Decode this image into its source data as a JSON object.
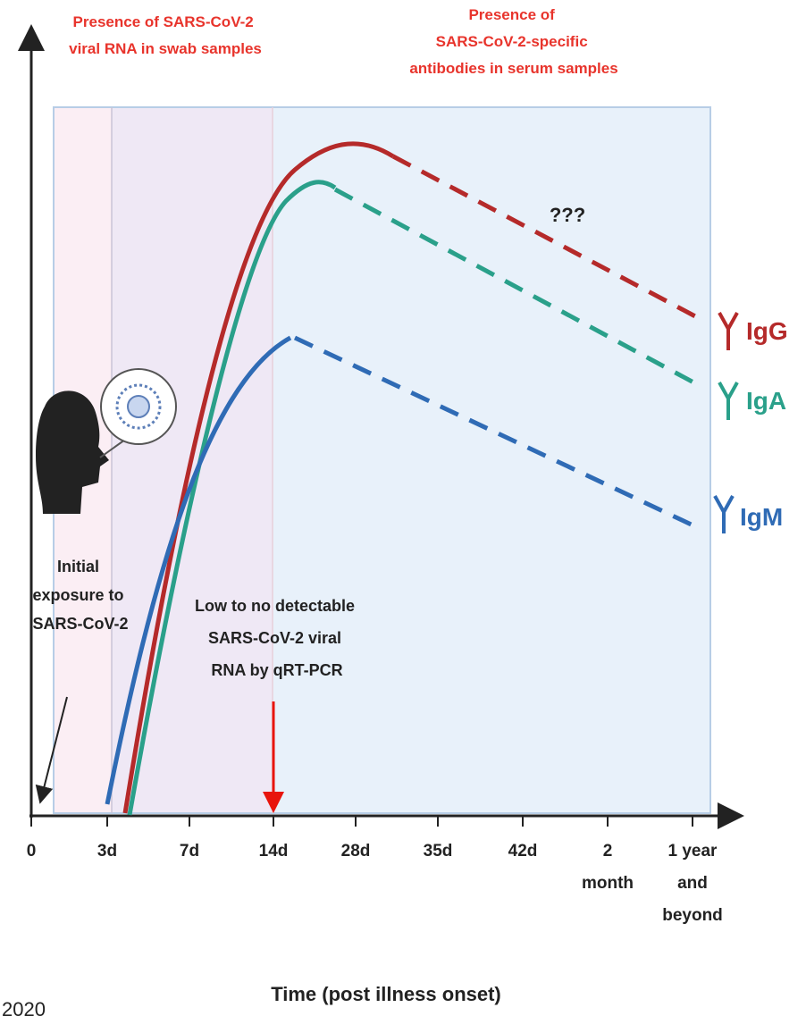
{
  "header": {
    "swab_label": [
      "Presence of SARS-CoV-2",
      "viral RNA in swab samples"
    ],
    "serum_label": [
      "Presence of",
      "SARS-CoV-2-specific",
      "antibodies in serum samples"
    ]
  },
  "annotations": {
    "unknown": "???",
    "exposure": [
      "Initial",
      "exposure to",
      "SARS-CoV-2"
    ],
    "detection": [
      "Low to no detectable",
      "SARS-CoV-2 viral",
      "RNA by qRT-PCR"
    ]
  },
  "legend": [
    "IgG",
    "IgA",
    "IgM"
  ],
  "x_axis": {
    "ticks": [
      [
        "0"
      ],
      [
        "3d"
      ],
      [
        "7d"
      ],
      [
        "14d"
      ],
      [
        "28d"
      ],
      [
        "35d"
      ],
      [
        "42d"
      ],
      [
        "2",
        "month"
      ],
      [
        "1 year",
        "and",
        "beyond"
      ]
    ],
    "title": "Time (post illness onset)"
  },
  "footer": "2020"
}
